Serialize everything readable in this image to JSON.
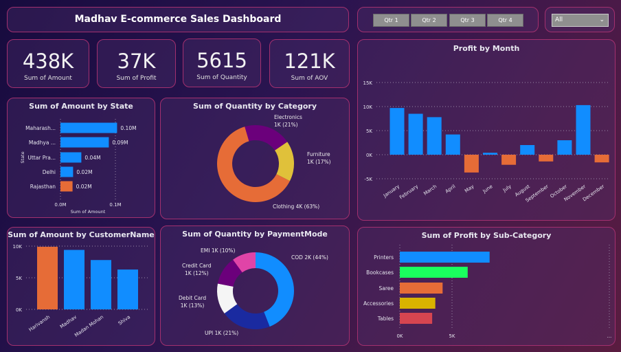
{
  "header": {
    "title": "Madhav E-commerce Sales Dashboard"
  },
  "slicer": {
    "quarters": [
      "Qtr 1",
      "Qtr 2",
      "Qtr 3",
      "Qtr 4"
    ],
    "dropdown_value": "All",
    "chevron_icon": "chevron-down-icon"
  },
  "kpis": [
    {
      "value": "438K",
      "label": "Sum of Amount"
    },
    {
      "value": "37K",
      "label": "Sum of Profit"
    },
    {
      "value": "5615",
      "label": "Sum of Quantity"
    },
    {
      "value": "121K",
      "label": "Sum of AOV"
    }
  ],
  "colors": {
    "blue": "#118dff",
    "orange": "#e66c37",
    "purple": "#6b007b",
    "yellow": "#e0c13a",
    "green": "#1aff5e",
    "gold": "#d9b300",
    "red": "#d64550",
    "navy": "#1a2aa0",
    "white": "#f5f5f5",
    "pink": "#e044a7"
  },
  "chart_data": [
    {
      "id": "state",
      "type": "bar",
      "orientation": "horizontal",
      "title": "Sum of Amount by State",
      "xlabel": "Sum of Amount",
      "ylabel": "State",
      "categories": [
        "Maharash...",
        "Madhya ...",
        "Uttar Pra...",
        "Delhi",
        "Rajasthan"
      ],
      "values": [
        0.103,
        0.088,
        0.038,
        0.023,
        0.022
      ],
      "data_labels": [
        "0.10M",
        "0.09M",
        "0.04M",
        "0.02M",
        "0.02M"
      ],
      "bar_colors": [
        "#118dff",
        "#118dff",
        "#118dff",
        "#118dff",
        "#e66c37"
      ],
      "xticks": [
        "0.0M",
        "0.1M"
      ],
      "xlim": [
        0,
        0.1
      ],
      "unit": "M",
      "grid": true
    },
    {
      "id": "category",
      "type": "pie",
      "donut": true,
      "title": "Sum of Quantity by Category",
      "slices": [
        {
          "label": "Electronics",
          "value_label": "1K (21%)",
          "percent": 21,
          "color": "#6b007b"
        },
        {
          "label": "Furniture",
          "value_label": "1K (17%)",
          "percent": 17,
          "color": "#e0c13a"
        },
        {
          "label": "Clothing",
          "value_label": "4K (63%)",
          "percent": 63,
          "color": "#e66c37"
        }
      ]
    },
    {
      "id": "month",
      "type": "bar",
      "title": "Profit by Month",
      "categories": [
        "January",
        "February",
        "March",
        "April",
        "May",
        "June",
        "July",
        "August",
        "September",
        "October",
        "November",
        "December"
      ],
      "values": [
        9.7,
        8.5,
        7.8,
        4.2,
        -3.7,
        0.4,
        -2.1,
        2.0,
        -1.4,
        3.0,
        10.3,
        -1.6
      ],
      "unit": "K",
      "yticks": [
        "15K",
        "10K",
        "5K",
        "0K",
        "-5K"
      ],
      "ylim": [
        -5,
        15
      ],
      "positive_color": "#118dff",
      "negative_color": "#e66c37",
      "grid": true
    },
    {
      "id": "customer",
      "type": "bar",
      "title": "Sum of Amount by CustomerName",
      "categories": [
        "Harivansh",
        "Madhav",
        "Madan Mohan",
        "Shiva"
      ],
      "values": [
        9.9,
        9.4,
        7.8,
        6.3
      ],
      "unit": "K",
      "bar_colors": [
        "#e66c37",
        "#118dff",
        "#118dff",
        "#118dff"
      ],
      "yticks": [
        "10K",
        "5K",
        "0K"
      ],
      "ylim": [
        0,
        10
      ],
      "grid": true
    },
    {
      "id": "payment",
      "type": "pie",
      "donut": true,
      "title": "Sum of Quantity by PaymentMode",
      "slices": [
        {
          "label": "COD",
          "value_label": "2K (44%)",
          "percent": 44,
          "color": "#118dff"
        },
        {
          "label": "UPI",
          "value_label": "1K (21%)",
          "percent": 21,
          "color": "#1a2aa0"
        },
        {
          "label": "Debit Card",
          "value_label": "1K (13%)",
          "percent": 13,
          "color": "#f5f5f5"
        },
        {
          "label": "Credit Card",
          "value_label": "1K (12%)",
          "percent": 12,
          "color": "#6b007b"
        },
        {
          "label": "EMI",
          "value_label": "1K (10%)",
          "percent": 10,
          "color": "#e044a7"
        }
      ]
    },
    {
      "id": "subcat",
      "type": "bar",
      "orientation": "horizontal",
      "title": "Sum of Profit by Sub-Category",
      "categories": [
        "Printers",
        "Bookcases",
        "Saree",
        "Accessories",
        "Tables"
      ],
      "values": [
        8.6,
        6.5,
        4.1,
        3.4,
        3.1
      ],
      "unit": "K",
      "bar_colors": [
        "#118dff",
        "#1aff5e",
        "#e66c37",
        "#d9b300",
        "#d64550"
      ],
      "xticks": [
        "0K",
        "5K",
        "..."
      ],
      "xlim": [
        0,
        10
      ],
      "grid": true
    }
  ]
}
